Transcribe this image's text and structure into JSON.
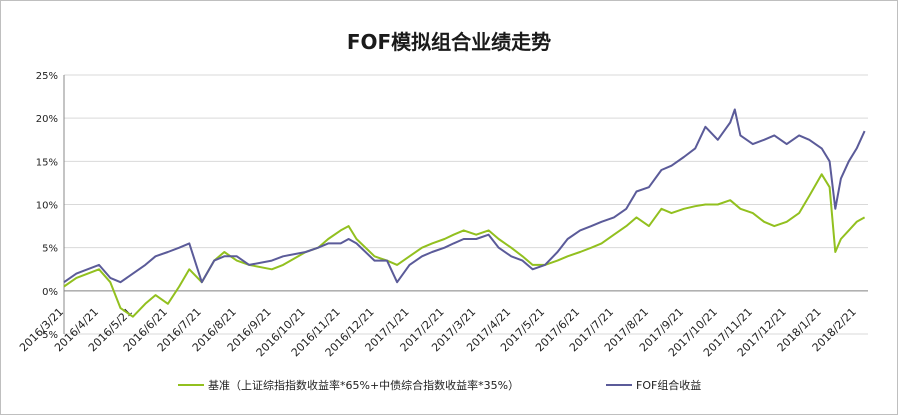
{
  "chart_data": {
    "type": "line",
    "title": "FOF模拟组合业绩走势",
    "ylim": [
      -5,
      25
    ],
    "yticks": [
      "-5%",
      "0%",
      "5%",
      "10%",
      "15%",
      "20%",
      "25%"
    ],
    "ytick_values": [
      -5,
      0,
      5,
      10,
      15,
      20,
      25
    ],
    "x": [
      "2016/3/21",
      "2016/4/21",
      "2016/5/21",
      "2016/6/21",
      "2016/7/21",
      "2016/8/21",
      "2016/9/21",
      "2016/10/21",
      "2016/11/21",
      "2016/12/21",
      "2017/1/21",
      "2017/2/21",
      "2017/3/21",
      "2017/4/21",
      "2017/5/21",
      "2017/6/21",
      "2017/7/21",
      "2017/8/21",
      "2017/9/21",
      "2017/10/21",
      "2017/11/21",
      "2017/12/21",
      "2018/1/21",
      "2018/2/21"
    ],
    "grid": true,
    "legend_position": "bottom",
    "series": [
      {
        "name": "基准（上证综指指数收益率*65%+中债综合指数收益率*35%）",
        "color": "#92c01f",
        "points": [
          [
            "2016/3/21",
            0.5
          ],
          [
            "2016/4/1",
            1.5
          ],
          [
            "2016/4/21",
            2.5
          ],
          [
            "2016/5/1",
            1.0
          ],
          [
            "2016/5/10",
            -2.0
          ],
          [
            "2016/5/21",
            -3.0
          ],
          [
            "2016/6/1",
            -1.5
          ],
          [
            "2016/6/10",
            -0.5
          ],
          [
            "2016/6/21",
            -1.5
          ],
          [
            "2016/7/1",
            0.5
          ],
          [
            "2016/7/10",
            2.5
          ],
          [
            "2016/7/21",
            1.0
          ],
          [
            "2016/8/1",
            3.5
          ],
          [
            "2016/8/10",
            4.5
          ],
          [
            "2016/8/21",
            3.5
          ],
          [
            "2016/9/1",
            3.0
          ],
          [
            "2016/9/21",
            2.5
          ],
          [
            "2016/10/1",
            3.0
          ],
          [
            "2016/10/21",
            4.5
          ],
          [
            "2016/11/1",
            5.0
          ],
          [
            "2016/11/10",
            6.0
          ],
          [
            "2016/11/21",
            7.0
          ],
          [
            "2016/11/28",
            7.5
          ],
          [
            "2016/12/5",
            6.0
          ],
          [
            "2016/12/21",
            4.0
          ],
          [
            "2017/1/1",
            3.5
          ],
          [
            "2017/1/10",
            3.0
          ],
          [
            "2017/1/21",
            4.0
          ],
          [
            "2017/2/1",
            5.0
          ],
          [
            "2017/2/10",
            5.5
          ],
          [
            "2017/2/21",
            6.0
          ],
          [
            "2017/3/1",
            6.5
          ],
          [
            "2017/3/10",
            7.0
          ],
          [
            "2017/3/21",
            6.5
          ],
          [
            "2017/4/1",
            7.0
          ],
          [
            "2017/4/10",
            6.0
          ],
          [
            "2017/4/21",
            5.0
          ],
          [
            "2017/5/1",
            4.0
          ],
          [
            "2017/5/10",
            3.0
          ],
          [
            "2017/5/21",
            3.0
          ],
          [
            "2017/6/1",
            3.5
          ],
          [
            "2017/6/10",
            4.0
          ],
          [
            "2017/6/21",
            4.5
          ],
          [
            "2017/7/1",
            5.0
          ],
          [
            "2017/7/10",
            5.5
          ],
          [
            "2017/7/21",
            6.5
          ],
          [
            "2017/8/1",
            7.5
          ],
          [
            "2017/8/10",
            8.5
          ],
          [
            "2017/8/21",
            7.5
          ],
          [
            "2017/9/1",
            9.5
          ],
          [
            "2017/9/10",
            9.0
          ],
          [
            "2017/9/21",
            9.5
          ],
          [
            "2017/10/1",
            9.8
          ],
          [
            "2017/10/10",
            10.0
          ],
          [
            "2017/10/21",
            10.0
          ],
          [
            "2017/11/1",
            10.5
          ],
          [
            "2017/11/10",
            9.5
          ],
          [
            "2017/11/21",
            9.0
          ],
          [
            "2017/12/1",
            8.0
          ],
          [
            "2017/12/10",
            7.5
          ],
          [
            "2017/12/21",
            8.0
          ],
          [
            "2018/1/1",
            9.0
          ],
          [
            "2018/1/10",
            11.0
          ],
          [
            "2018/1/21",
            13.5
          ],
          [
            "2018/1/28",
            12.0
          ],
          [
            "2018/2/2",
            4.5
          ],
          [
            "2018/2/7",
            6.0
          ],
          [
            "2018/2/14",
            7.0
          ],
          [
            "2018/2/21",
            8.0
          ],
          [
            "2018/2/28",
            8.5
          ]
        ]
      },
      {
        "name": "FOF组合收益",
        "color": "#5b5b99",
        "points": [
          [
            "2016/3/21",
            1.0
          ],
          [
            "2016/4/1",
            2.0
          ],
          [
            "2016/4/21",
            3.0
          ],
          [
            "2016/5/1",
            1.5
          ],
          [
            "2016/5/10",
            1.0
          ],
          [
            "2016/5/21",
            2.0
          ],
          [
            "2016/6/1",
            3.0
          ],
          [
            "2016/6/10",
            4.0
          ],
          [
            "2016/6/21",
            4.5
          ],
          [
            "2016/7/1",
            5.0
          ],
          [
            "2016/7/10",
            5.5
          ],
          [
            "2016/7/21",
            1.0
          ],
          [
            "2016/8/1",
            3.5
          ],
          [
            "2016/8/10",
            4.0
          ],
          [
            "2016/8/21",
            4.0
          ],
          [
            "2016/9/1",
            3.0
          ],
          [
            "2016/9/21",
            3.5
          ],
          [
            "2016/10/1",
            4.0
          ],
          [
            "2016/10/21",
            4.5
          ],
          [
            "2016/11/1",
            5.0
          ],
          [
            "2016/11/10",
            5.5
          ],
          [
            "2016/11/21",
            5.5
          ],
          [
            "2016/11/28",
            6.0
          ],
          [
            "2016/12/5",
            5.5
          ],
          [
            "2016/12/21",
            3.5
          ],
          [
            "2017/1/1",
            3.5
          ],
          [
            "2017/1/10",
            1.0
          ],
          [
            "2017/1/21",
            3.0
          ],
          [
            "2017/2/1",
            4.0
          ],
          [
            "2017/2/10",
            4.5
          ],
          [
            "2017/2/21",
            5.0
          ],
          [
            "2017/3/1",
            5.5
          ],
          [
            "2017/3/10",
            6.0
          ],
          [
            "2017/3/21",
            6.0
          ],
          [
            "2017/4/1",
            6.5
          ],
          [
            "2017/4/10",
            5.0
          ],
          [
            "2017/4/21",
            4.0
          ],
          [
            "2017/5/1",
            3.5
          ],
          [
            "2017/5/10",
            2.5
          ],
          [
            "2017/5/21",
            3.0
          ],
          [
            "2017/6/1",
            4.5
          ],
          [
            "2017/6/10",
            6.0
          ],
          [
            "2017/6/21",
            7.0
          ],
          [
            "2017/7/1",
            7.5
          ],
          [
            "2017/7/10",
            8.0
          ],
          [
            "2017/7/21",
            8.5
          ],
          [
            "2017/8/1",
            9.5
          ],
          [
            "2017/8/10",
            11.5
          ],
          [
            "2017/8/21",
            12.0
          ],
          [
            "2017/9/1",
            14.0
          ],
          [
            "2017/9/10",
            14.5
          ],
          [
            "2017/9/21",
            15.5
          ],
          [
            "2017/10/1",
            16.5
          ],
          [
            "2017/10/10",
            19.0
          ],
          [
            "2017/10/21",
            17.5
          ],
          [
            "2017/11/1",
            19.5
          ],
          [
            "2017/11/5",
            21.0
          ],
          [
            "2017/11/10",
            18.0
          ],
          [
            "2017/11/21",
            17.0
          ],
          [
            "2017/12/1",
            17.5
          ],
          [
            "2017/12/10",
            18.0
          ],
          [
            "2017/12/21",
            17.0
          ],
          [
            "2018/1/1",
            18.0
          ],
          [
            "2018/1/10",
            17.5
          ],
          [
            "2018/1/21",
            16.5
          ],
          [
            "2018/1/28",
            15.0
          ],
          [
            "2018/2/2",
            9.5
          ],
          [
            "2018/2/7",
            13.0
          ],
          [
            "2018/2/14",
            15.0
          ],
          [
            "2018/2/21",
            16.5
          ],
          [
            "2018/2/28",
            18.5
          ]
        ]
      }
    ]
  },
  "legend": {
    "benchmark_label": "基准（上证综指指数收益率*65%+中债综合指数收益率*35%）",
    "fof_label": "FOF组合收益"
  }
}
